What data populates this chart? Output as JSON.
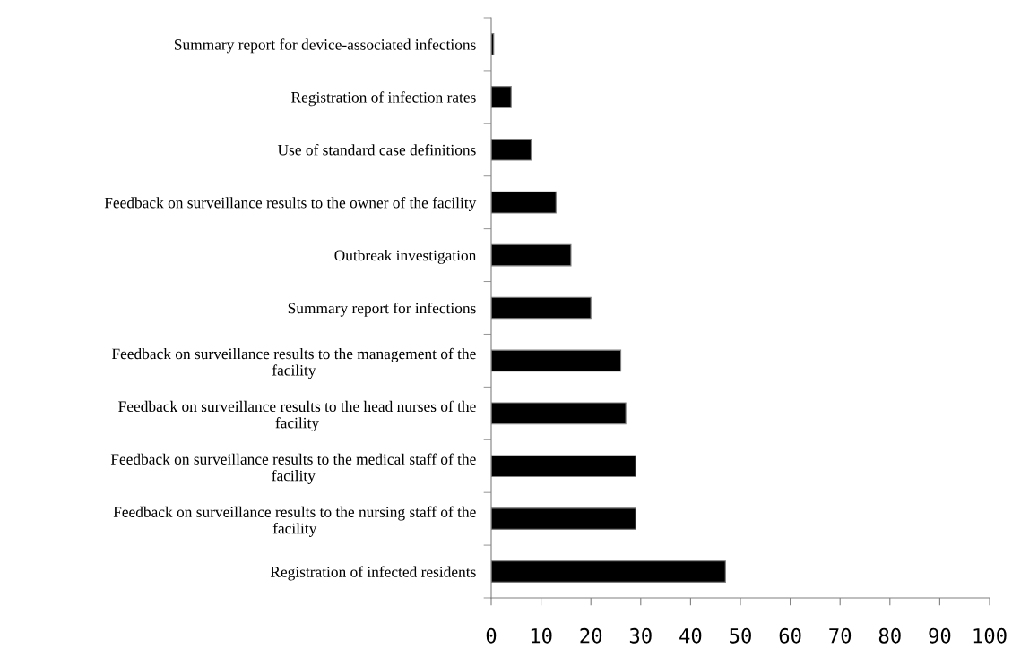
{
  "chart_data": {
    "type": "bar",
    "orientation": "horizontal",
    "categories": [
      "Summary report for device-associated infections",
      "Registration of infection rates",
      "Use of standard case definitions",
      "Feedback on surveillance results to the owner of the facility",
      "Outbreak investigation",
      "Summary report for infections",
      "Feedback on surveillance results to the management of the\nfacility",
      "Feedback on surveillance results to the head nurses of the\nfacility",
      "Feedback on surveillance results to the medical staff of the\nfacility",
      "Feedback on surveillance results to the nursing staff of the\nfacility",
      "Registration of infected residents"
    ],
    "values": [
      0.5,
      4,
      8,
      13,
      16,
      20,
      26,
      27,
      29,
      29,
      47
    ],
    "color": "#000000",
    "xlim": [
      0,
      100
    ],
    "xticks": [
      0,
      10,
      20,
      30,
      40,
      50,
      60,
      70,
      80,
      90,
      100
    ],
    "grid": false,
    "legend": false
  }
}
